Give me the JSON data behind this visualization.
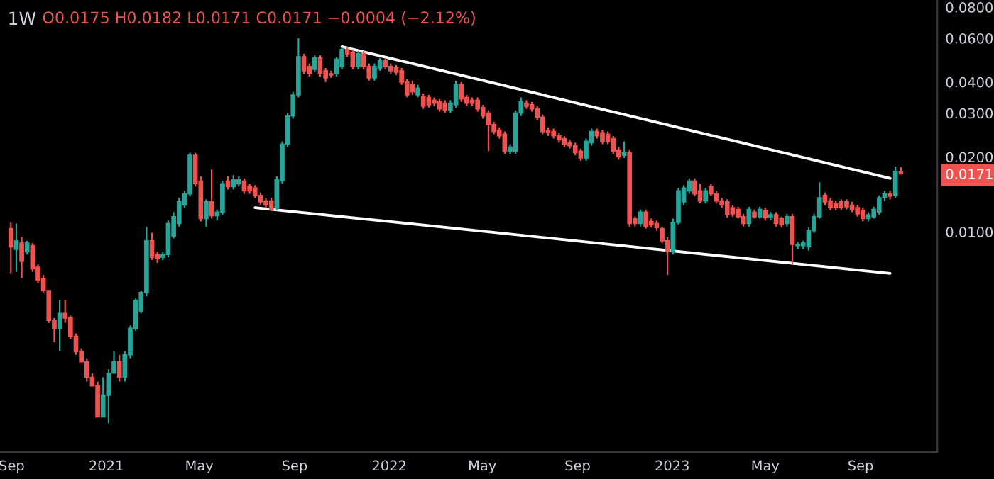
{
  "chart_data": {
    "type": "candlestick",
    "title": "1W",
    "annotations": [
      "O0.0175 H0.0182 L0.0171 C0.0171 −0.0004 (−2.12%)"
    ],
    "log": "y",
    "ylim": [
      0.0013,
      0.0855
    ],
    "yticks": [
      {
        "value": 0.01,
        "label": "0.0100"
      },
      {
        "value": 0.0171,
        "label": "0.0171"
      },
      {
        "value": 0.02,
        "label": "0.0200"
      },
      {
        "value": 0.03,
        "label": "0.0300"
      },
      {
        "value": 0.04,
        "label": "0.0400"
      },
      {
        "value": 0.06,
        "label": "0.0600"
      },
      {
        "value": 0.08,
        "label": "0.0800"
      }
    ],
    "xlim": [
      "2020-08-17",
      "2023-12-09"
    ],
    "xticks": [
      {
        "value": "2020-09-01",
        "label": "Sep"
      },
      {
        "value": "2021-01-01",
        "label": "2021"
      },
      {
        "value": "2021-05-01",
        "label": "May"
      },
      {
        "value": "2021-09-01",
        "label": "Sep"
      },
      {
        "value": "2022-01-01",
        "label": "2022"
      },
      {
        "value": "2022-05-01",
        "label": "May"
      },
      {
        "value": "2022-09-01",
        "label": "Sep"
      },
      {
        "value": "2023-01-01",
        "label": "2023"
      },
      {
        "value": "2023-05-01",
        "label": "May"
      },
      {
        "value": "2023-09-01",
        "label": "Sep"
      }
    ],
    "x": [
      "2020-08-31",
      "2020-09-07",
      "2020-09-14",
      "2020-09-21",
      "2020-09-28",
      "2020-10-05",
      "2020-10-12",
      "2020-10-19",
      "2020-10-26",
      "2020-11-02",
      "2020-11-09",
      "2020-11-16",
      "2020-11-23",
      "2020-11-30",
      "2020-12-07",
      "2020-12-14",
      "2020-12-21",
      "2020-12-28",
      "2021-01-04",
      "2021-01-11",
      "2021-01-18",
      "2021-01-25",
      "2021-02-01",
      "2021-02-08",
      "2021-02-15",
      "2021-02-22",
      "2021-03-01",
      "2021-03-08",
      "2021-03-15",
      "2021-03-22",
      "2021-03-29",
      "2021-04-05",
      "2021-04-12",
      "2021-04-19",
      "2021-04-26",
      "2021-05-03",
      "2021-05-10",
      "2021-05-17",
      "2021-05-24",
      "2021-05-31",
      "2021-06-07",
      "2021-06-14",
      "2021-06-21",
      "2021-06-28",
      "2021-07-05",
      "2021-07-12",
      "2021-07-19",
      "2021-07-26",
      "2021-08-02",
      "2021-08-09",
      "2021-08-16",
      "2021-08-23",
      "2021-08-30",
      "2021-09-06",
      "2021-09-13",
      "2021-09-20",
      "2021-09-27",
      "2021-10-04",
      "2021-10-11",
      "2021-10-18",
      "2021-10-25",
      "2021-11-01",
      "2021-11-08",
      "2021-11-15",
      "2021-11-22",
      "2021-11-29",
      "2021-12-06",
      "2021-12-13",
      "2021-12-20",
      "2021-12-27",
      "2022-01-03",
      "2022-01-10",
      "2022-01-17",
      "2022-01-24",
      "2022-01-31",
      "2022-02-07",
      "2022-02-14",
      "2022-02-21",
      "2022-02-28",
      "2022-03-07",
      "2022-03-14",
      "2022-03-21",
      "2022-03-28",
      "2022-04-04",
      "2022-04-11",
      "2022-04-18",
      "2022-04-25",
      "2022-05-02",
      "2022-05-09",
      "2022-05-16",
      "2022-05-23",
      "2022-05-30",
      "2022-06-06",
      "2022-06-13",
      "2022-06-20",
      "2022-06-27",
      "2022-07-04",
      "2022-07-11",
      "2022-07-18",
      "2022-07-25",
      "2022-08-01",
      "2022-08-08",
      "2022-08-15",
      "2022-08-22",
      "2022-08-29",
      "2022-09-05",
      "2022-09-12",
      "2022-09-19",
      "2022-09-26",
      "2022-10-03",
      "2022-10-10",
      "2022-10-17",
      "2022-10-24",
      "2022-10-31",
      "2022-11-07",
      "2022-11-14",
      "2022-11-21",
      "2022-11-28",
      "2022-12-05",
      "2022-12-12",
      "2022-12-19",
      "2022-12-26",
      "2023-01-02",
      "2023-01-09",
      "2023-01-16",
      "2023-01-23",
      "2023-01-30",
      "2023-02-06",
      "2023-02-13",
      "2023-02-20",
      "2023-02-27",
      "2023-03-06",
      "2023-03-13",
      "2023-03-20",
      "2023-03-27",
      "2023-04-03",
      "2023-04-10",
      "2023-04-17",
      "2023-04-24",
      "2023-05-01",
      "2023-05-08",
      "2023-05-15",
      "2023-05-22",
      "2023-05-29",
      "2023-06-05",
      "2023-06-12",
      "2023-06-19",
      "2023-06-26",
      "2023-07-03",
      "2023-07-10",
      "2023-07-17",
      "2023-07-24",
      "2023-07-31",
      "2023-08-07",
      "2023-08-14",
      "2023-08-21",
      "2023-08-28",
      "2023-09-04",
      "2023-09-11",
      "2023-09-18",
      "2023-09-25",
      "2023-10-02",
      "2023-10-09",
      "2023-10-16",
      "2023-10-23"
    ],
    "ohlc": [
      [
        0.0103,
        0.0109,
        0.0068,
        0.0087
      ],
      [
        0.0085,
        0.0108,
        0.0069,
        0.0092
      ],
      [
        0.009,
        0.0095,
        0.0065,
        0.0076
      ],
      [
        0.0083,
        0.0092,
        0.0081,
        0.009
      ],
      [
        0.0088,
        0.009,
        0.0069,
        0.0071
      ],
      [
        0.0072,
        0.0074,
        0.0062,
        0.0064
      ],
      [
        0.0065,
        0.0067,
        0.0057,
        0.0058
      ],
      [
        0.0058,
        0.0058,
        0.0043,
        0.0044
      ],
      [
        0.0044,
        0.0045,
        0.0036,
        0.0041
      ],
      [
        0.0041,
        0.0053,
        0.0033,
        0.0047
      ],
      [
        0.0047,
        0.0053,
        0.0043,
        0.0045
      ],
      [
        0.0045,
        0.0046,
        0.0037,
        0.0038
      ],
      [
        0.0038,
        0.0039,
        0.0032,
        0.0033
      ],
      [
        0.0033,
        0.0034,
        0.003,
        0.003
      ],
      [
        0.003,
        0.0031,
        0.0025,
        0.0026
      ],
      [
        0.0026,
        0.0027,
        0.0024,
        0.0024
      ],
      [
        0.0024,
        0.0025,
        0.0018,
        0.0018
      ],
      [
        0.0018,
        0.0026,
        0.0018,
        0.0022
      ],
      [
        0.0022,
        0.0028,
        0.0017,
        0.0027
      ],
      [
        0.0027,
        0.0033,
        0.0027,
        0.003
      ],
      [
        0.003,
        0.0032,
        0.0025,
        0.0026
      ],
      [
        0.0026,
        0.0033,
        0.0025,
        0.0032
      ],
      [
        0.0032,
        0.0042,
        0.0031,
        0.0041
      ],
      [
        0.0041,
        0.0054,
        0.004,
        0.0053
      ],
      [
        0.0048,
        0.0058,
        0.0047,
        0.0057
      ],
      [
        0.0057,
        0.0105,
        0.0055,
        0.0092
      ],
      [
        0.0092,
        0.0099,
        0.0077,
        0.0079
      ],
      [
        0.0081,
        0.0083,
        0.0075,
        0.0078
      ],
      [
        0.0079,
        0.0083,
        0.0077,
        0.0081
      ],
      [
        0.0081,
        0.0111,
        0.0079,
        0.0108
      ],
      [
        0.0096,
        0.012,
        0.0094,
        0.0115
      ],
      [
        0.0108,
        0.0137,
        0.0105,
        0.0132
      ],
      [
        0.0128,
        0.0146,
        0.0125,
        0.0142
      ],
      [
        0.0142,
        0.0208,
        0.0139,
        0.0203
      ],
      [
        0.0203,
        0.0208,
        0.0152,
        0.0156
      ],
      [
        0.016,
        0.0167,
        0.011,
        0.0113
      ],
      [
        0.0113,
        0.0135,
        0.0105,
        0.0132
      ],
      [
        0.0132,
        0.0178,
        0.0113,
        0.0116
      ],
      [
        0.0116,
        0.0123,
        0.0111,
        0.012
      ],
      [
        0.012,
        0.016,
        0.0117,
        0.0156
      ],
      [
        0.016,
        0.0167,
        0.0148,
        0.0152
      ],
      [
        0.0152,
        0.0169,
        0.0148,
        0.0162
      ],
      [
        0.0156,
        0.0167,
        0.0152,
        0.0162
      ],
      [
        0.016,
        0.0164,
        0.0142,
        0.0146
      ],
      [
        0.0152,
        0.0156,
        0.0142,
        0.0146
      ],
      [
        0.015,
        0.0154,
        0.0137,
        0.014
      ],
      [
        0.014,
        0.0144,
        0.0128,
        0.0132
      ],
      [
        0.0133,
        0.0137,
        0.0125,
        0.0128
      ],
      [
        0.0133,
        0.0137,
        0.0122,
        0.0123
      ],
      [
        0.0125,
        0.0167,
        0.0122,
        0.0162
      ],
      [
        0.016,
        0.0231,
        0.0156,
        0.0225
      ],
      [
        0.0225,
        0.03,
        0.0219,
        0.0292
      ],
      [
        0.0292,
        0.0365,
        0.0285,
        0.0355
      ],
      [
        0.0355,
        0.06,
        0.0347,
        0.0506
      ],
      [
        0.0506,
        0.052,
        0.0432,
        0.0444
      ],
      [
        0.0462,
        0.0475,
        0.0421,
        0.0432
      ],
      [
        0.045,
        0.0513,
        0.0438,
        0.05
      ],
      [
        0.05,
        0.0513,
        0.0421,
        0.0432
      ],
      [
        0.0444,
        0.0456,
        0.04,
        0.0416
      ],
      [
        0.0432,
        0.0444,
        0.0416,
        0.0427
      ],
      [
        0.0432,
        0.0506,
        0.0421,
        0.0494
      ],
      [
        0.0462,
        0.0555,
        0.045,
        0.0541
      ],
      [
        0.0541,
        0.0555,
        0.0506,
        0.052
      ],
      [
        0.0527,
        0.0541,
        0.045,
        0.0462
      ],
      [
        0.0462,
        0.0534,
        0.045,
        0.052
      ],
      [
        0.052,
        0.0534,
        0.045,
        0.0462
      ],
      [
        0.0462,
        0.0475,
        0.0405,
        0.0416
      ],
      [
        0.0416,
        0.0475,
        0.0405,
        0.0462
      ],
      [
        0.0456,
        0.05,
        0.0444,
        0.0487
      ],
      [
        0.0487,
        0.05,
        0.045,
        0.0462
      ],
      [
        0.0462,
        0.0475,
        0.0432,
        0.0444
      ],
      [
        0.0456,
        0.0468,
        0.0427,
        0.0438
      ],
      [
        0.0444,
        0.0456,
        0.039,
        0.04
      ],
      [
        0.04,
        0.041,
        0.0347,
        0.0355
      ],
      [
        0.039,
        0.0405,
        0.0355,
        0.0365
      ],
      [
        0.0355,
        0.039,
        0.0347,
        0.0378
      ],
      [
        0.035,
        0.036,
        0.0312,
        0.032
      ],
      [
        0.0347,
        0.0355,
        0.0316,
        0.0324
      ],
      [
        0.0338,
        0.0347,
        0.032,
        0.0329
      ],
      [
        0.0333,
        0.0342,
        0.0304,
        0.0312
      ],
      [
        0.0329,
        0.0338,
        0.03,
        0.0308
      ],
      [
        0.0308,
        0.0338,
        0.03,
        0.0329
      ],
      [
        0.0324,
        0.0405,
        0.0316,
        0.039
      ],
      [
        0.039,
        0.04,
        0.0333,
        0.0342
      ],
      [
        0.0347,
        0.0355,
        0.032,
        0.0329
      ],
      [
        0.0338,
        0.0347,
        0.032,
        0.0329
      ],
      [
        0.0338,
        0.0347,
        0.0304,
        0.0312
      ],
      [
        0.0316,
        0.0324,
        0.0285,
        0.0292
      ],
      [
        0.03,
        0.0308,
        0.0211,
        0.027
      ],
      [
        0.027,
        0.0277,
        0.0247,
        0.0253
      ],
      [
        0.0256,
        0.0263,
        0.0237,
        0.0243
      ],
      [
        0.0247,
        0.0253,
        0.0206,
        0.0211
      ],
      [
        0.0211,
        0.0225,
        0.0206,
        0.0219
      ],
      [
        0.0211,
        0.0308,
        0.0206,
        0.03
      ],
      [
        0.03,
        0.0347,
        0.0292,
        0.0333
      ],
      [
        0.0329,
        0.0338,
        0.0312,
        0.032
      ],
      [
        0.0324,
        0.0333,
        0.0304,
        0.0312
      ],
      [
        0.0312,
        0.032,
        0.0281,
        0.0289
      ],
      [
        0.0289,
        0.0296,
        0.0247,
        0.0253
      ],
      [
        0.0256,
        0.0263,
        0.0243,
        0.025
      ],
      [
        0.0253,
        0.026,
        0.0237,
        0.0243
      ],
      [
        0.0243,
        0.025,
        0.0228,
        0.0234
      ],
      [
        0.0237,
        0.0243,
        0.0219,
        0.0225
      ],
      [
        0.0228,
        0.0234,
        0.0216,
        0.0222
      ],
      [
        0.0222,
        0.0228,
        0.0203,
        0.0208
      ],
      [
        0.0211,
        0.0216,
        0.0193,
        0.0198
      ],
      [
        0.0198,
        0.0237,
        0.0193,
        0.0231
      ],
      [
        0.0228,
        0.026,
        0.0222,
        0.0253
      ],
      [
        0.0253,
        0.026,
        0.0237,
        0.0243
      ],
      [
        0.025,
        0.0256,
        0.0225,
        0.0231
      ],
      [
        0.0247,
        0.0253,
        0.0225,
        0.0231
      ],
      [
        0.0237,
        0.0243,
        0.0206,
        0.0211
      ],
      [
        0.0213,
        0.0219,
        0.0195,
        0.02
      ],
      [
        0.0203,
        0.0231,
        0.0198,
        0.0208
      ],
      [
        0.0208,
        0.0213,
        0.0105,
        0.0108
      ],
      [
        0.0113,
        0.0115,
        0.0105,
        0.0108
      ],
      [
        0.0108,
        0.0123,
        0.0105,
        0.012
      ],
      [
        0.012,
        0.0123,
        0.0103,
        0.0105
      ],
      [
        0.011,
        0.0113,
        0.0104,
        0.0107
      ],
      [
        0.0108,
        0.0111,
        0.0101,
        0.0104
      ],
      [
        0.0103,
        0.0105,
        0.009,
        0.0092
      ],
      [
        0.0092,
        0.0095,
        0.0067,
        0.0083
      ],
      [
        0.0083,
        0.0113,
        0.0081,
        0.0109
      ],
      [
        0.0109,
        0.015,
        0.0107,
        0.0146
      ],
      [
        0.0132,
        0.0154,
        0.0128,
        0.015
      ],
      [
        0.0146,
        0.0164,
        0.0142,
        0.016
      ],
      [
        0.016,
        0.0164,
        0.0139,
        0.0142
      ],
      [
        0.0146,
        0.0156,
        0.013,
        0.0133
      ],
      [
        0.0133,
        0.015,
        0.013,
        0.0146
      ],
      [
        0.0152,
        0.0156,
        0.0139,
        0.0142
      ],
      [
        0.0142,
        0.0146,
        0.013,
        0.0133
      ],
      [
        0.0133,
        0.0137,
        0.0125,
        0.0128
      ],
      [
        0.0132,
        0.0135,
        0.0114,
        0.0117
      ],
      [
        0.0125,
        0.0128,
        0.0115,
        0.0118
      ],
      [
        0.0123,
        0.0126,
        0.0113,
        0.0115
      ],
      [
        0.0115,
        0.0118,
        0.0105,
        0.0108
      ],
      [
        0.0108,
        0.0126,
        0.0105,
        0.0123
      ],
      [
        0.012,
        0.0123,
        0.0113,
        0.0115
      ],
      [
        0.0115,
        0.0126,
        0.0113,
        0.0123
      ],
      [
        0.0122,
        0.0125,
        0.0111,
        0.0114
      ],
      [
        0.0114,
        0.012,
        0.0111,
        0.0117
      ],
      [
        0.0117,
        0.012,
        0.0105,
        0.0108
      ],
      [
        0.0113,
        0.0115,
        0.0104,
        0.0107
      ],
      [
        0.0108,
        0.0118,
        0.0105,
        0.0115
      ],
      [
        0.0115,
        0.0118,
        0.0074,
        0.0089
      ],
      [
        0.0088,
        0.0091,
        0.0085,
        0.0089
      ],
      [
        0.0088,
        0.0092,
        0.0085,
        0.009
      ],
      [
        0.0087,
        0.0104,
        0.0084,
        0.0101
      ],
      [
        0.0101,
        0.0118,
        0.0099,
        0.0115
      ],
      [
        0.0115,
        0.0158,
        0.0113,
        0.0137
      ],
      [
        0.014,
        0.0144,
        0.0128,
        0.0132
      ],
      [
        0.0133,
        0.0137,
        0.0122,
        0.0125
      ],
      [
        0.013,
        0.0133,
        0.0122,
        0.0125
      ],
      [
        0.0132,
        0.0135,
        0.0122,
        0.0125
      ],
      [
        0.0132,
        0.0135,
        0.0123,
        0.0126
      ],
      [
        0.0128,
        0.0132,
        0.012,
        0.0123
      ],
      [
        0.0125,
        0.0128,
        0.0115,
        0.0118
      ],
      [
        0.0122,
        0.0125,
        0.011,
        0.0113
      ],
      [
        0.0113,
        0.012,
        0.011,
        0.0117
      ],
      [
        0.0115,
        0.0126,
        0.0113,
        0.0123
      ],
      [
        0.012,
        0.014,
        0.0117,
        0.0137
      ],
      [
        0.0137,
        0.0146,
        0.0133,
        0.0142
      ],
      [
        0.0142,
        0.0146,
        0.0135,
        0.0139
      ],
      [
        0.014,
        0.0183,
        0.0137,
        0.0175
      ],
      [
        0.0175,
        0.0182,
        0.0171,
        0.0171
      ]
    ],
    "series": [
      {
        "type": "line",
        "color": "#ffffff",
        "x": [
          "2021-11-01",
          "2023-10-09"
        ],
        "values": [
          0.0555,
          0.0164
        ]
      },
      {
        "type": "line",
        "color": "#ffffff",
        "x": [
          "2021-07-12",
          "2023-10-09"
        ],
        "values": [
          0.0125,
          0.0068
        ]
      }
    ]
  }
}
